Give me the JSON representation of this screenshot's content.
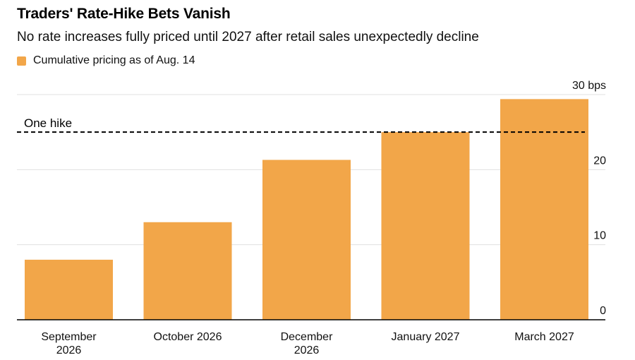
{
  "chart_data": {
    "type": "bar",
    "title": "Traders' Rate-Hike Bets Vanish",
    "subtitle": "No rate increases fully priced until 2027 after retail sales unexpectedly decline",
    "legend": {
      "placement": "top-left",
      "entries": [
        {
          "name": "Cumulative pricing as of Aug. 14",
          "color": "#F2A649"
        }
      ]
    },
    "categories": [
      [
        "September",
        "2026"
      ],
      [
        "October 2026"
      ],
      [
        "December",
        "2026"
      ],
      [
        "January 2027"
      ],
      [
        "March 2027"
      ]
    ],
    "series": [
      {
        "name": "Cumulative pricing as of Aug. 14",
        "values": [
          8,
          13,
          21.3,
          25,
          29.4
        ]
      }
    ],
    "ylim": [
      0,
      30
    ],
    "y_axis_side": "right",
    "yticks": [
      {
        "value": 0,
        "label": "0"
      },
      {
        "value": 10,
        "label": "10"
      },
      {
        "value": 20,
        "label": "20"
      },
      {
        "value": 30,
        "label": "30 bps"
      }
    ],
    "grid": true,
    "reference_line": {
      "value": 25,
      "label": "One hike",
      "style": "dashed"
    },
    "colors": {
      "bar": "#F2A649",
      "grid": "#E0E0E0",
      "axis": "#000000",
      "reference": "#000000"
    }
  }
}
